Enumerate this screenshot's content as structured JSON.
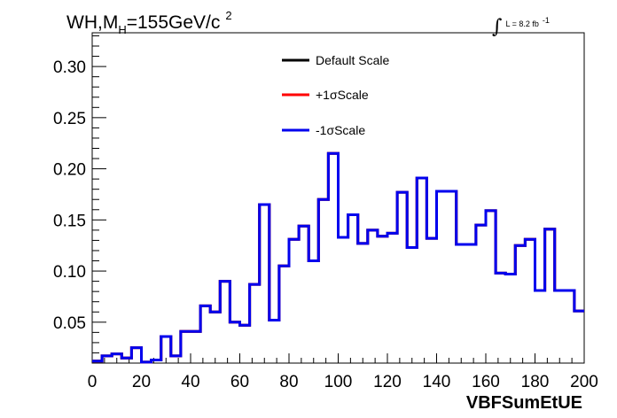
{
  "chart_data": {
    "type": "line",
    "style": "step-histogram",
    "title": {
      "main": "WH,M",
      "subscript": "H",
      "value": "=155GeV/c",
      "superscript": "2"
    },
    "luminosity": {
      "symbol": "∫",
      "text": "L = 8.2 fb",
      "superscript": "-1"
    },
    "xlabel": "VBFSumEtUE",
    "ylabel": "",
    "xlim": [
      0,
      200
    ],
    "ylim": [
      0.01,
      0.333
    ],
    "x_ticks": [
      0,
      20,
      40,
      60,
      80,
      100,
      120,
      140,
      160,
      180,
      200
    ],
    "y_ticks": [
      0.05,
      0.1,
      0.15,
      0.2,
      0.25,
      0.3
    ],
    "y_tick_labels": [
      "0.05",
      "0.10",
      "0.15",
      "0.20",
      "0.25",
      "0.30"
    ],
    "grid": false,
    "legend_position": "top-center",
    "bin_edges": [
      0,
      4,
      8,
      12,
      16,
      20,
      24,
      28,
      32,
      36,
      40,
      44,
      48,
      52,
      56,
      60,
      64,
      68,
      72,
      76,
      80,
      84,
      88,
      92,
      96,
      100,
      104,
      108,
      112,
      116,
      120,
      124,
      128,
      132,
      136,
      140,
      144,
      148,
      152,
      156,
      160,
      164,
      168,
      172,
      176,
      180,
      184,
      188,
      192,
      196,
      200
    ],
    "series": [
      {
        "name": "Default Scale",
        "color": "#000000",
        "values": [
          0.012,
          0.017,
          0.019,
          0.015,
          0.025,
          0.011,
          0.013,
          0.036,
          0.017,
          0.041,
          0.041,
          0.066,
          0.06,
          0.09,
          0.05,
          0.047,
          0.087,
          0.165,
          0.052,
          0.105,
          0.131,
          0.144,
          0.11,
          0.17,
          0.215,
          0.133,
          0.155,
          0.127,
          0.14,
          0.134,
          0.137,
          0.177,
          0.123,
          0.191,
          0.132,
          0.178,
          0.178,
          0.126,
          0.126,
          0.145,
          0.159,
          0.098,
          0.097,
          0.125,
          0.131,
          0.081,
          0.141,
          0.081,
          0.081,
          0.061
        ]
      },
      {
        "name": "+1σScale",
        "color": "#ff0000",
        "values": [
          0.012,
          0.017,
          0.019,
          0.015,
          0.025,
          0.011,
          0.013,
          0.036,
          0.017,
          0.041,
          0.041,
          0.066,
          0.06,
          0.09,
          0.05,
          0.047,
          0.087,
          0.165,
          0.052,
          0.105,
          0.131,
          0.144,
          0.11,
          0.17,
          0.215,
          0.133,
          0.155,
          0.127,
          0.14,
          0.134,
          0.137,
          0.177,
          0.123,
          0.191,
          0.132,
          0.178,
          0.178,
          0.126,
          0.126,
          0.145,
          0.159,
          0.098,
          0.097,
          0.125,
          0.131,
          0.081,
          0.141,
          0.081,
          0.081,
          0.061
        ]
      },
      {
        "name": "-1σScale",
        "color": "#0000ee",
        "values": [
          0.012,
          0.017,
          0.019,
          0.015,
          0.025,
          0.011,
          0.013,
          0.036,
          0.017,
          0.041,
          0.041,
          0.066,
          0.06,
          0.09,
          0.05,
          0.047,
          0.087,
          0.165,
          0.052,
          0.105,
          0.131,
          0.144,
          0.11,
          0.17,
          0.215,
          0.133,
          0.155,
          0.127,
          0.14,
          0.134,
          0.137,
          0.177,
          0.123,
          0.191,
          0.132,
          0.178,
          0.178,
          0.126,
          0.126,
          0.145,
          0.159,
          0.098,
          0.097,
          0.125,
          0.131,
          0.081,
          0.141,
          0.081,
          0.081,
          0.061
        ]
      }
    ]
  }
}
